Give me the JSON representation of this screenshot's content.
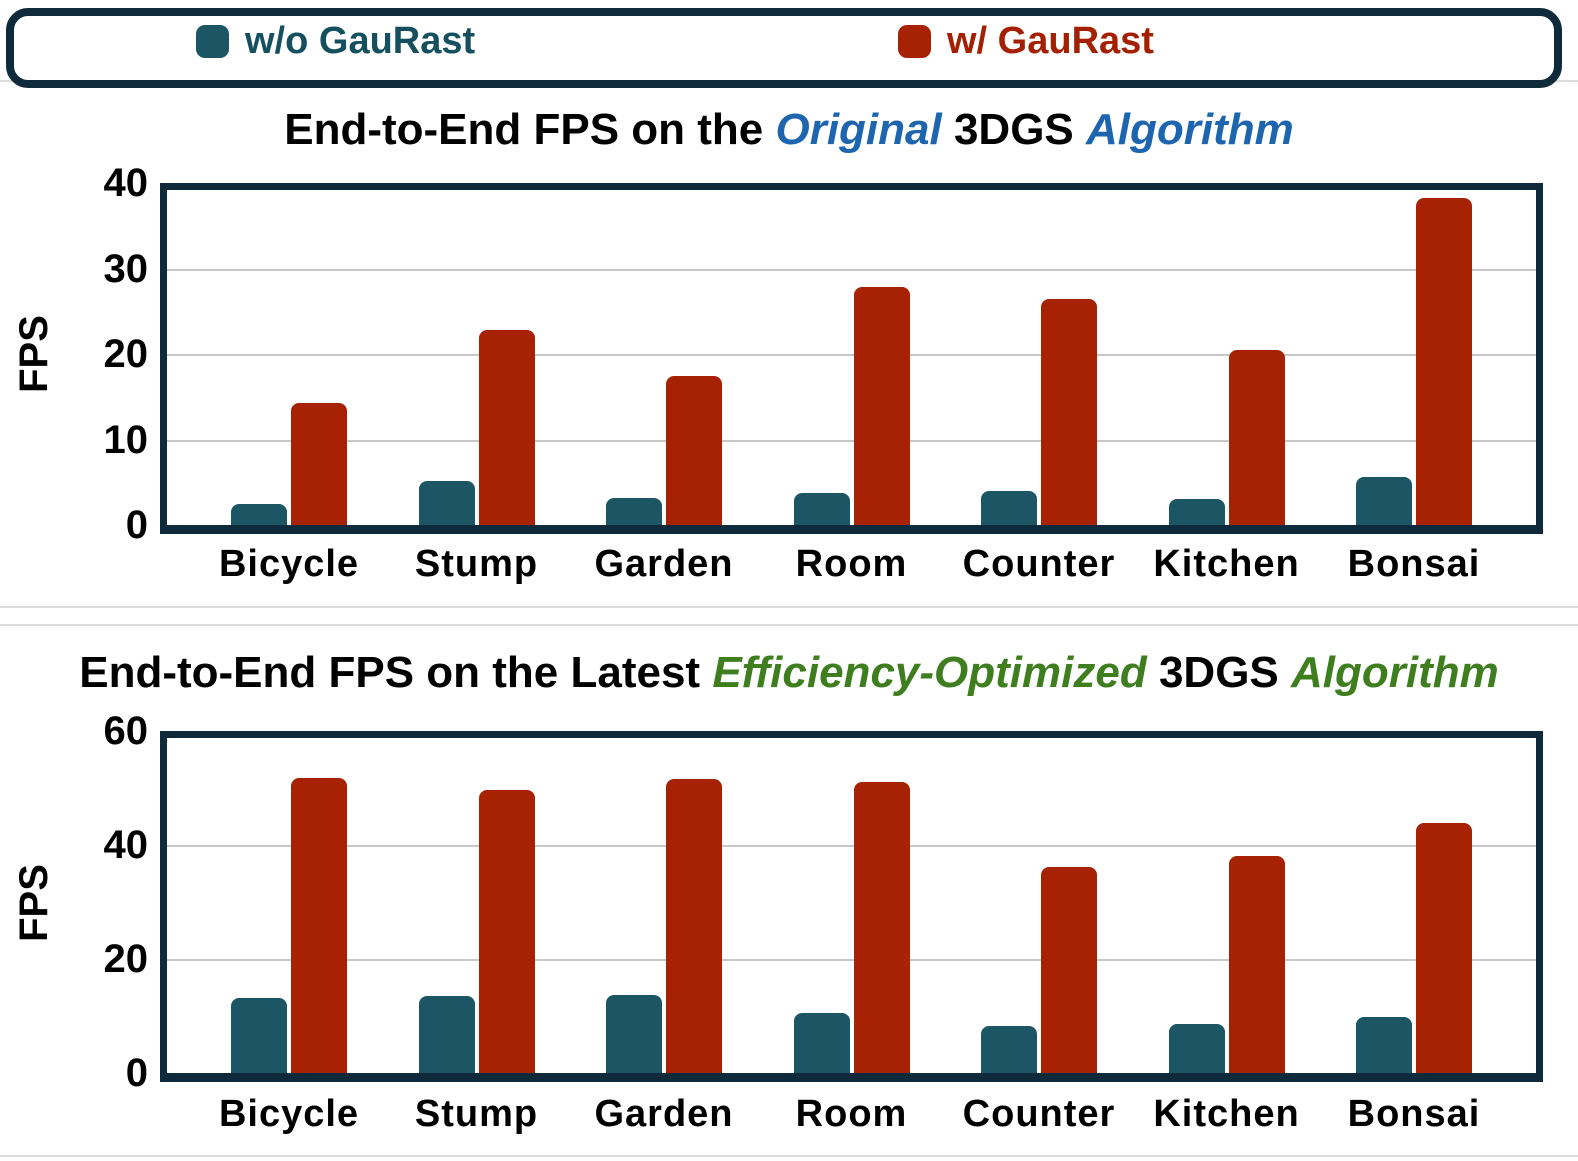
{
  "legend": {
    "items": [
      {
        "label": "w/o GauRast",
        "color": "#1C5665",
        "text_color": "#14505F"
      },
      {
        "label": "w/ GauRast",
        "color": "#A72103",
        "text_color": "#A32000"
      }
    ]
  },
  "colors": {
    "frame": "#0F2A3A",
    "grid": "#C8C8C8",
    "separator": "#DCDCDC",
    "original_accent": "#1D65AE",
    "optimized_accent": "#3E7E1E"
  },
  "chart_data": [
    {
      "type": "bar",
      "title": "End-to-End FPS on the Original 3DGS Algorithm",
      "title_parts": [
        {
          "text": "End-to-End FPS on the ",
          "style": "plain"
        },
        {
          "text": "Original",
          "style": "accent"
        },
        {
          "text": " 3DGS ",
          "style": "plain"
        },
        {
          "text": "Algorithm",
          "style": "accent"
        }
      ],
      "accent_color": "#1D65AE",
      "categories": [
        "Bicycle",
        "Stump",
        "Garden",
        "Room",
        "Counter",
        "Kitchen",
        "Bonsai"
      ],
      "series": [
        {
          "name": "w/o GauRast",
          "color": "#1C5665",
          "values": [
            2.4,
            5.1,
            3.2,
            3.7,
            4.0,
            3.0,
            5.6
          ]
        },
        {
          "name": "w/ GauRast",
          "color": "#A72103",
          "values": [
            14.3,
            22.8,
            17.4,
            27.8,
            26.4,
            20.5,
            38.2
          ]
        }
      ],
      "xlabel": "",
      "ylabel": "FPS",
      "ylim": [
        0,
        40
      ],
      "yticks": [
        0,
        10,
        20,
        30,
        40
      ],
      "grid": true,
      "legend_position": "top"
    },
    {
      "type": "bar",
      "title": "End-to-End FPS on the Latest Efficiency-Optimized 3DGS Algorithm",
      "title_parts": [
        {
          "text": "End-to-End FPS on the Latest ",
          "style": "plain"
        },
        {
          "text": "Efficiency-Optimized",
          "style": "accent"
        },
        {
          "text": " 3DGS ",
          "style": "plain"
        },
        {
          "text": "Algorithm",
          "style": "accent"
        }
      ],
      "accent_color": "#3E7E1E",
      "categories": [
        "Bicycle",
        "Stump",
        "Garden",
        "Room",
        "Counter",
        "Kitchen",
        "Bonsai"
      ],
      "series": [
        {
          "name": "w/o GauRast",
          "color": "#1C5665",
          "values": [
            13.1,
            13.5,
            13.6,
            10.5,
            8.3,
            8.6,
            9.9
          ]
        },
        {
          "name": "w/ GauRast",
          "color": "#A72103",
          "values": [
            51.8,
            49.7,
            51.5,
            51.1,
            36.2,
            38.1,
            43.9
          ]
        }
      ],
      "xlabel": "",
      "ylabel": "FPS",
      "ylim": [
        0,
        60
      ],
      "yticks": [
        0,
        20,
        40,
        60
      ],
      "grid": true,
      "legend_position": "top"
    }
  ]
}
